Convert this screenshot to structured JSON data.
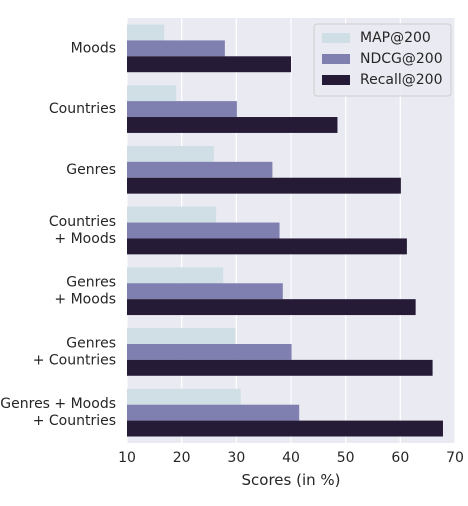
{
  "chart_data": {
    "type": "bar",
    "orientation": "horizontal",
    "categories": [
      [
        "Moods"
      ],
      [
        "Countries"
      ],
      [
        "Genres"
      ],
      [
        "Countries",
        "+ Moods"
      ],
      [
        "Genres",
        "+ Moods"
      ],
      [
        "Genres",
        "+ Countries"
      ],
      [
        "Genres + Moods",
        "+ Countries"
      ]
    ],
    "series": [
      {
        "name": "MAP@200",
        "color": "#cfdfe5",
        "values": [
          16.8,
          19.0,
          25.9,
          26.3,
          27.6,
          29.8,
          30.8
        ]
      },
      {
        "name": "NDCG@200",
        "color": "#7f80b0",
        "values": [
          27.9,
          30.1,
          36.6,
          37.9,
          38.5,
          40.1,
          41.5
        ]
      },
      {
        "name": "Recall@200",
        "color": "#261b36",
        "values": [
          40.0,
          48.5,
          60.1,
          61.2,
          62.8,
          65.9,
          67.8
        ]
      }
    ],
    "xlabel": "Scores (in %)",
    "ylabel": "",
    "xlim": [
      10,
      70
    ],
    "xticks": [
      10,
      20,
      30,
      40,
      50,
      60,
      70
    ],
    "grid": true,
    "background": "#eaeaf2",
    "legend_position": "top-right"
  }
}
